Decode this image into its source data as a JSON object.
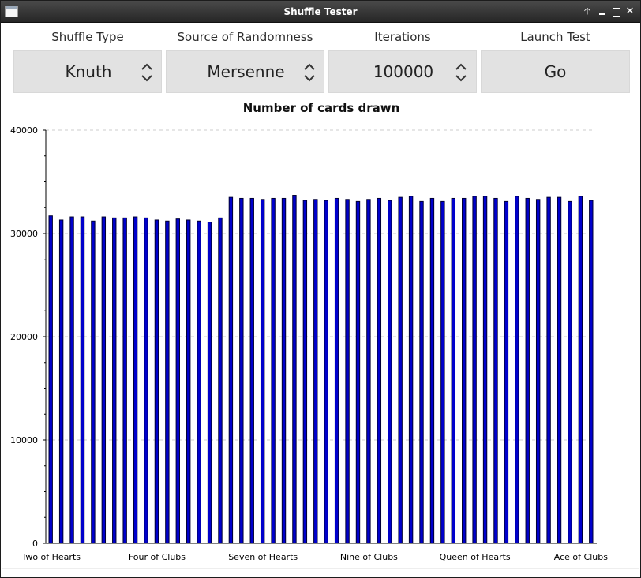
{
  "window": {
    "title": "Shuffle Tester"
  },
  "titlebar_icons": [
    "app-icon",
    "shade-up-icon",
    "minimize-icon",
    "maximize-icon",
    "close-icon"
  ],
  "controls": {
    "shuffle_type": {
      "label": "Shuffle Type",
      "value": "Knuth"
    },
    "source": {
      "label": "Source of Randomness",
      "value": "Mersenne"
    },
    "iterations": {
      "label": "Iterations",
      "value": "100000"
    },
    "launch": {
      "label": "Launch Test",
      "button": "Go"
    }
  },
  "colors": {
    "bar_fill": "#0000cc",
    "bar_stroke": "#000033",
    "control_bg": "#e2e2e2"
  },
  "chart_data": {
    "type": "bar",
    "title": "Number of cards drawn",
    "xlabel": "",
    "ylabel": "",
    "ylim": [
      0,
      40000
    ],
    "yticks": [
      0,
      10000,
      20000,
      30000,
      40000
    ],
    "grid": "horizontal dashed",
    "x_tick_labels": [
      {
        "index": 0,
        "label": "Two of Hearts"
      },
      {
        "index": 10,
        "label": "Four of Clubs"
      },
      {
        "index": 20,
        "label": "Seven of Hearts"
      },
      {
        "index": 30,
        "label": "Nine of Clubs"
      },
      {
        "index": 40,
        "label": "Queen of Hearts"
      },
      {
        "index": 50,
        "label": "Ace of Clubs"
      }
    ],
    "values": [
      31700,
      31300,
      31600,
      31600,
      31200,
      31600,
      31500,
      31500,
      31600,
      31500,
      31300,
      31200,
      31400,
      31300,
      31200,
      31100,
      31500,
      33500,
      33400,
      33400,
      33300,
      33400,
      33400,
      33700,
      33200,
      33300,
      33200,
      33400,
      33300,
      33100,
      33300,
      33400,
      33200,
      33500,
      33600,
      33100,
      33400,
      33100,
      33400,
      33400,
      33600,
      33600,
      33400,
      33100,
      33600,
      33400,
      33300,
      33500,
      33500,
      33100,
      33600,
      33200
    ]
  }
}
